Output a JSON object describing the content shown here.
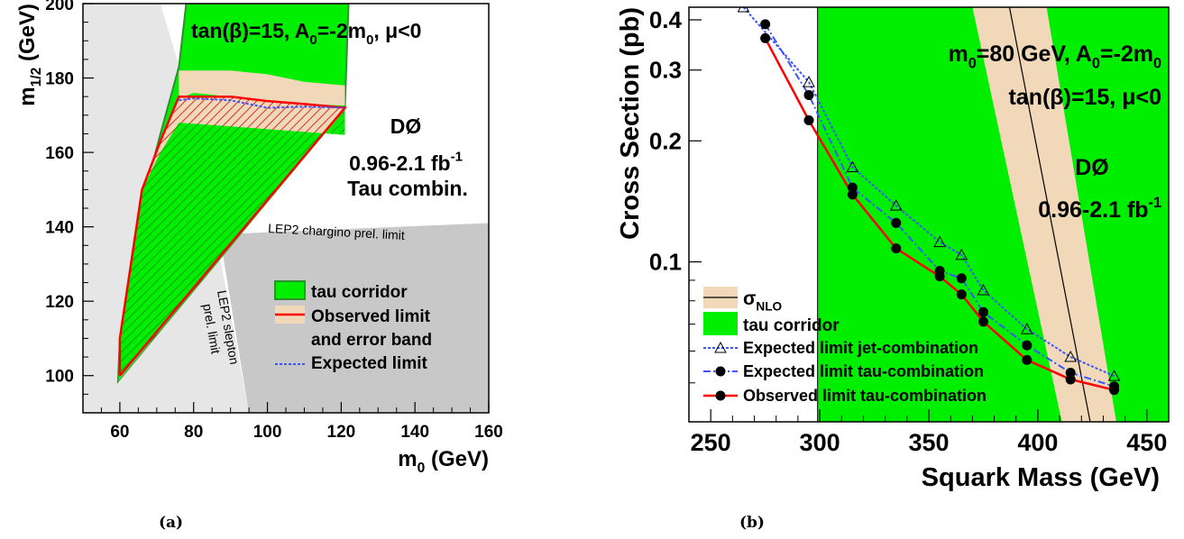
{
  "chart_data": [
    {
      "type": "area",
      "panel_label": "(a)",
      "xlabel": "m",
      "xlabel_sub": "0",
      "xlabel_unit": " (GeV)",
      "ylabel": "m",
      "ylabel_sub": "1/2",
      "ylabel_unit": " (GeV)",
      "xlim": [
        50,
        160
      ],
      "ylim": [
        90,
        200
      ],
      "x_ticks": [
        60,
        80,
        100,
        120,
        140,
        160
      ],
      "y_ticks": [
        100,
        120,
        140,
        160,
        180,
        200
      ],
      "title_parts": [
        "tan(β)=15, A",
        "0",
        "=-2m",
        "0",
        ", μ<0"
      ],
      "experiment": "DØ",
      "luminosity": "0.96-2.1 fb",
      "luminosity_sup": "-1",
      "combination": "Tau combin.",
      "annotations": {
        "chargino": "LEP2 chargino prel. limit",
        "slepton_line1": "LEP2 slepton",
        "slepton_line2": "prel. limit"
      },
      "legend": [
        {
          "label": "tau corridor",
          "style": "green-box"
        },
        {
          "label": "Observed limit",
          "style": "red-line"
        },
        {
          "label": "and error band",
          "style": "none"
        },
        {
          "label": "Expected limit",
          "style": "blue-dotted"
        }
      ],
      "regions": {
        "slepton_excluded": [
          [
            50,
            90
          ],
          [
            50,
            200
          ],
          [
            71,
            200
          ],
          [
            80,
            170
          ],
          [
            95,
            90
          ]
        ],
        "chargino_excluded": [
          [
            95,
            90
          ],
          [
            87,
            138
          ],
          [
            160,
            141
          ],
          [
            160,
            90
          ]
        ],
        "tau_corridor": [
          [
            59.5,
            98.5
          ],
          [
            60,
            110
          ],
          [
            67,
            150
          ],
          [
            71,
            165
          ],
          [
            76,
            183
          ],
          [
            78,
            200
          ],
          [
            122,
            200
          ],
          [
            121,
            172
          ],
          [
            59.5,
            98.5
          ]
        ],
        "error_band_upper": [
          [
            76,
            174.5
          ],
          [
            80,
            176
          ],
          [
            90,
            175
          ],
          [
            100,
            173.8
          ],
          [
            110,
            173
          ],
          [
            121,
            172.6
          ]
        ],
        "error_band_outer": [
          [
            76,
            182
          ],
          [
            80,
            182
          ],
          [
            90,
            182
          ],
          [
            100,
            181
          ],
          [
            110,
            179
          ],
          [
            121,
            178
          ]
        ],
        "observed_limit": [
          [
            60,
            100
          ],
          [
            60,
            110
          ],
          [
            66,
            150
          ],
          [
            71,
            163
          ],
          [
            76,
            175
          ],
          [
            80,
            175
          ],
          [
            90,
            175
          ],
          [
            100,
            173.8
          ],
          [
            110,
            173
          ],
          [
            121,
            172
          ]
        ],
        "expected_limit": [
          [
            76,
            174
          ],
          [
            80,
            174.5
          ],
          [
            90,
            174
          ],
          [
            100,
            172
          ],
          [
            110,
            172.3
          ],
          [
            121,
            172
          ]
        ],
        "hatched": [
          [
            60,
            100
          ],
          [
            60,
            110
          ],
          [
            66,
            150
          ],
          [
            71,
            163
          ],
          [
            76,
            175
          ],
          [
            90,
            175
          ],
          [
            100,
            173.8
          ],
          [
            121,
            172
          ]
        ],
        "hatched_green_top": [
          [
            76,
            168
          ],
          [
            90,
            167
          ],
          [
            110,
            165.5
          ],
          [
            121,
            164.7
          ]
        ]
      }
    },
    {
      "type": "line",
      "panel_label": "(b)",
      "xlabel": "Squark Mass (GeV)",
      "ylabel": "Cross Section (pb)",
      "xlim": [
        240,
        460
      ],
      "ylim": [
        0.04,
        0.43
      ],
      "y_scale": "log",
      "x_ticks": [
        250,
        300,
        350,
        400,
        450
      ],
      "y_ticks": [
        0.1,
        0.2,
        0.3,
        0.4
      ],
      "y_tick_labels": [
        "0.1",
        "0.2",
        "0.3",
        "0.4"
      ],
      "text_parts_1": [
        "m",
        "0",
        "=80 GeV, A",
        "0",
        "=-2m",
        "0"
      ],
      "text_2": "tan(β)=15, μ<0",
      "experiment": "DØ",
      "luminosity": "0.96-2.1 fb",
      "luminosity_sup": "-1",
      "tau_corridor_x": [
        299,
        460
      ],
      "nlo_band": {
        "center": [
          [
            387,
            0.43
          ],
          [
            424,
            0.04
          ]
        ],
        "lower": [
          [
            370,
            0.43
          ],
          [
            411,
            0.04
          ]
        ],
        "upper": [
          [
            404,
            0.43
          ],
          [
            436,
            0.04
          ]
        ]
      },
      "series": [
        {
          "name": "Expected limit jet-combination",
          "x": [
            265,
            295,
            315,
            335,
            355,
            365,
            375,
            395,
            415,
            435
          ],
          "y": [
            0.43,
            0.28,
            0.172,
            0.138,
            0.112,
            0.104,
            0.085,
            0.068,
            0.058,
            0.052
          ]
        },
        {
          "name": "Expected limit tau-combination",
          "x": [
            275,
            295,
            315,
            335,
            355,
            365,
            375,
            395,
            415,
            435
          ],
          "y": [
            0.39,
            0.26,
            0.153,
            0.125,
            0.095,
            0.091,
            0.075,
            0.062,
            0.053,
            0.049
          ]
        },
        {
          "name": "Observed limit tau-combination",
          "x": [
            275,
            295,
            315,
            335,
            355,
            365,
            375,
            395,
            415,
            435
          ],
          "y": [
            0.36,
            0.225,
            0.147,
            0.108,
            0.092,
            0.083,
            0.071,
            0.057,
            0.051,
            0.048
          ]
        }
      ],
      "legend": [
        {
          "label": "σ",
          "sub": "NLO",
          "style": "band-line"
        },
        {
          "label": "tau corridor",
          "style": "green-box"
        },
        {
          "label": "Expected limit jet-combination",
          "style": "blue-dotted-triangle"
        },
        {
          "label": "Expected limit tau-combination",
          "style": "blue-dashdot-circle"
        },
        {
          "label": "Observed limit tau-combination",
          "style": "red-line-circle"
        }
      ]
    }
  ],
  "colors": {
    "green": "#00ef00",
    "green_border": "#2f8f2f",
    "band": "#f0d8b8",
    "red": "#ff0000",
    "blue": "#3a55ff",
    "light_grey": "#e6e6e6",
    "dark_grey": "#c8c8c8",
    "hatch_red": "#d93030",
    "hatch_green": "#1a8a1a"
  }
}
